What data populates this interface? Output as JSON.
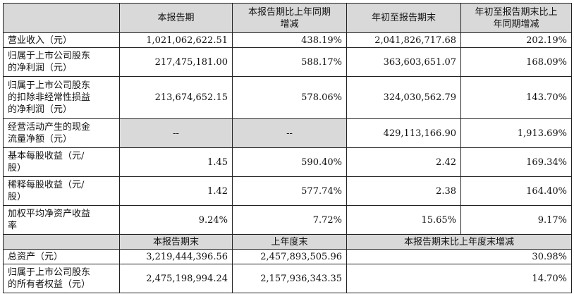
{
  "header": {
    "col1": "本报告期",
    "col2_line1": "本报告期比上年同期",
    "col2_line2": "增减",
    "col3": "年初至报告期末",
    "col4_line1": "年初至报告期末比上",
    "col4_line2": "年同期增减"
  },
  "rows": [
    {
      "label_lines": [
        "营业收入（元）"
      ],
      "v1": "1,021,062,622.51",
      "v2": "438.19%",
      "v3": "2,041,826,717.68",
      "v4": "202.19%"
    },
    {
      "label_lines": [
        "归属于上市公司股东",
        "的净利润（元）"
      ],
      "v1": "217,475,181.00",
      "v2": "588.17%",
      "v3": "363,603,651.07",
      "v4": "168.09%"
    },
    {
      "label_lines": [
        "归属于上市公司股东",
        "的扣除非经常性损益",
        "的净利润（元）"
      ],
      "v1": "213,674,652.15",
      "v2": "578.06%",
      "v3": "324,030,562.79",
      "v4": "143.70%"
    },
    {
      "label_lines": [
        "经营活动产生的现金",
        "流量净额（元）"
      ],
      "v1": "--",
      "v2": "--",
      "v3": "429,113,166.90",
      "v4": "1,913.69%"
    },
    {
      "label_lines": [
        "基本每股收益（元/",
        "股）"
      ],
      "v1": "1.45",
      "v2": "590.40%",
      "v3": "2.42",
      "v4": "169.34%"
    },
    {
      "label_lines": [
        "稀释每股收益（元/",
        "股）"
      ],
      "v1": "1.42",
      "v2": "577.74%",
      "v3": "2.38",
      "v4": "164.40%"
    },
    {
      "label_lines": [
        "加权平均净资产收益",
        "率"
      ],
      "v1": "9.24%",
      "v2": "7.72%",
      "v3": "15.65%",
      "v4": "9.17%"
    }
  ],
  "subheader": {
    "col1": "本报告期末",
    "col2": "上年度末",
    "col3": "本报告期末比上年度末增减"
  },
  "bottom_rows": [
    {
      "label_lines": [
        "总资产（元）"
      ],
      "v1": "3,219,444,396.56",
      "v2": "2,457,893,505.96",
      "v3": "30.98%"
    },
    {
      "label_lines": [
        "归属于上市公司股东",
        "的所有者权益（元）"
      ],
      "v1": "2,475,198,994.24",
      "v2": "2,157,936,343.35",
      "v3": "14.70%"
    }
  ]
}
